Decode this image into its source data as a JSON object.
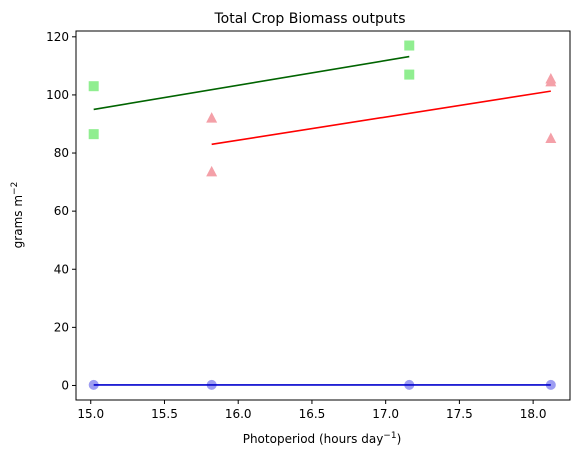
{
  "chart_data": {
    "type": "scatter",
    "title": "Total Crop Biomass outputs",
    "xlabel": "Photoperiod (hours day",
    "xlabel_sup": "−1",
    "xlabel_close": ")",
    "ylabel": "grams m",
    "ylabel_sup": "−2",
    "xlim": [
      14.9,
      18.25
    ],
    "ylim": [
      -5,
      122
    ],
    "xticks": [
      15.0,
      15.5,
      16.0,
      16.5,
      17.0,
      17.5,
      18.0
    ],
    "xtick_labels": [
      "15.0",
      "15.5",
      "16.0",
      "16.5",
      "17.0",
      "17.5",
      "18.0"
    ],
    "yticks": [
      0,
      20,
      40,
      60,
      80,
      100,
      120
    ],
    "ytick_labels": [
      "0",
      "20",
      "40",
      "60",
      "80",
      "100",
      "120"
    ],
    "grid": false,
    "series": [
      {
        "marker": "square",
        "marker_color": "#90ee90",
        "line_color": "#006400",
        "points": [
          [
            15.02,
            103.0
          ],
          [
            15.02,
            86.5
          ],
          [
            17.16,
            117.0
          ],
          [
            17.16,
            107.0
          ]
        ],
        "fit": [
          [
            15.02,
            95.0
          ],
          [
            17.16,
            113.2
          ]
        ]
      },
      {
        "marker": "triangle",
        "marker_color": "#f4a0a8",
        "line_color": "#ff0000",
        "points": [
          [
            15.82,
            92.0
          ],
          [
            15.82,
            73.5
          ],
          [
            18.12,
            105.5
          ],
          [
            18.12,
            104.5
          ],
          [
            18.12,
            85.0
          ]
        ],
        "fit": [
          [
            15.82,
            83.0
          ],
          [
            18.12,
            101.3
          ]
        ]
      },
      {
        "marker": "circle",
        "marker_color": "#9d9df2",
        "line_color": "#0000cd",
        "points": [
          [
            15.02,
            0.2
          ],
          [
            15.82,
            0.2
          ],
          [
            17.16,
            0.2
          ],
          [
            18.12,
            0.2
          ]
        ],
        "fit": [
          [
            15.02,
            0.2
          ],
          [
            18.12,
            0.2
          ]
        ]
      }
    ]
  }
}
